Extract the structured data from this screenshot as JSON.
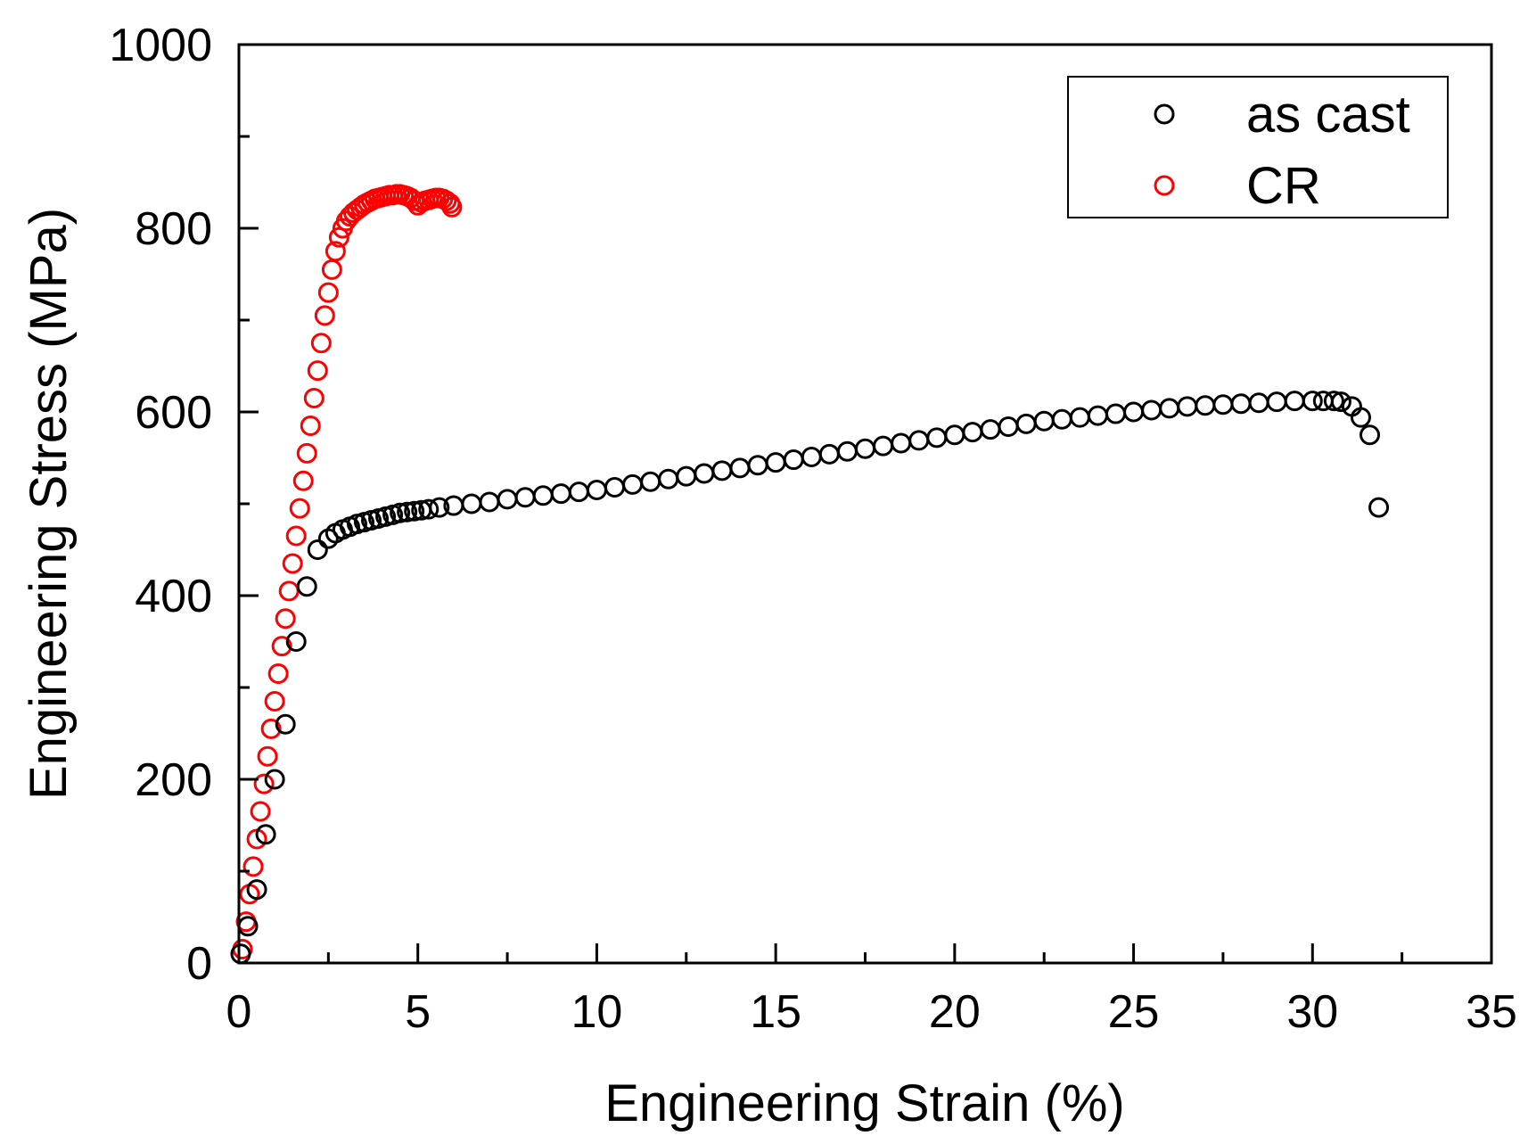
{
  "chart_data": {
    "type": "scatter",
    "xlabel": "Engineering Strain (%)",
    "ylabel": "Engineering Stress (MPa)",
    "xlim": [
      0,
      35
    ],
    "ylim": [
      0,
      1000
    ],
    "xticks": [
      0,
      5,
      10,
      15,
      20,
      25,
      30,
      35
    ],
    "xtick_labels": [
      "0",
      "5",
      "10",
      "15",
      "20",
      "25",
      "30",
      "35"
    ],
    "yticks": [
      0,
      200,
      400,
      600,
      800,
      1000
    ],
    "ytick_labels": [
      "0",
      "200",
      "400",
      "600",
      "800",
      "1000"
    ],
    "grid": false,
    "legend_position": "top-right",
    "marker": "hollow-circle",
    "series": [
      {
        "name": "as cast",
        "color": "#000000",
        "x": [
          0.05,
          0.25,
          0.5,
          0.75,
          1.0,
          1.3,
          1.6,
          1.9,
          2.2,
          2.5,
          2.7,
          2.9,
          3.1,
          3.3,
          3.5,
          3.7,
          3.9,
          4.1,
          4.3,
          4.5,
          4.7,
          4.9,
          5.1,
          5.3,
          5.6,
          6.0,
          6.5,
          7.0,
          7.5,
          8.0,
          8.5,
          9.0,
          9.5,
          10.0,
          10.5,
          11.0,
          11.5,
          12.0,
          12.5,
          13.0,
          13.5,
          14.0,
          14.5,
          15.0,
          15.5,
          16.0,
          16.5,
          17.0,
          17.5,
          18.0,
          18.5,
          19.0,
          19.5,
          20.0,
          20.5,
          21.0,
          21.5,
          22.0,
          22.5,
          23.0,
          23.5,
          24.0,
          24.5,
          25.0,
          25.5,
          26.0,
          26.5,
          27.0,
          27.5,
          28.0,
          28.5,
          29.0,
          29.5,
          30.0,
          30.3,
          30.6,
          30.8,
          31.1,
          31.35,
          31.6,
          31.85
        ],
        "y": [
          10,
          40,
          80,
          140,
          200,
          260,
          350,
          410,
          450,
          462,
          468,
          472,
          475,
          478,
          480,
          482,
          484,
          486,
          488,
          490,
          491,
          492,
          493,
          494,
          496,
          498,
          500,
          502,
          505,
          507,
          509,
          511,
          513,
          515,
          518,
          521,
          524,
          527,
          530,
          533,
          536,
          539,
          542,
          545,
          548,
          551,
          554,
          557,
          560,
          563,
          566,
          569,
          572,
          575,
          578,
          581,
          584,
          587,
          590,
          592,
          594,
          596,
          598,
          600,
          602,
          604,
          606,
          607,
          608,
          609,
          610,
          611,
          612,
          612,
          612,
          612,
          611,
          606,
          594,
          575,
          496
        ]
      },
      {
        "name": "CR",
        "color": "#ff0000",
        "x": [
          0.1,
          0.2,
          0.3,
          0.4,
          0.5,
          0.6,
          0.7,
          0.8,
          0.9,
          1.0,
          1.1,
          1.2,
          1.3,
          1.4,
          1.5,
          1.6,
          1.7,
          1.8,
          1.9,
          2.0,
          2.1,
          2.2,
          2.3,
          2.4,
          2.5,
          2.6,
          2.7,
          2.8,
          2.9,
          3.0,
          3.1,
          3.2,
          3.3,
          3.4,
          3.5,
          3.6,
          3.7,
          3.8,
          3.9,
          4.0,
          4.1,
          4.2,
          4.3,
          4.4,
          4.5,
          4.6,
          4.7,
          4.8,
          4.9,
          5.0,
          5.1,
          5.2,
          5.3,
          5.4,
          5.5,
          5.6,
          5.7,
          5.8,
          5.9,
          5.95
        ],
        "y": [
          15,
          45,
          75,
          105,
          135,
          165,
          195,
          225,
          255,
          285,
          315,
          345,
          375,
          405,
          435,
          465,
          495,
          525,
          555,
          585,
          615,
          645,
          675,
          705,
          730,
          755,
          775,
          790,
          800,
          808,
          813,
          817,
          820,
          823,
          826,
          828,
          830,
          832,
          833,
          834,
          835,
          836,
          836,
          837,
          837,
          836,
          835,
          833,
          830,
          825,
          828,
          830,
          831,
          832,
          833,
          833,
          832,
          830,
          827,
          823
        ]
      }
    ]
  }
}
